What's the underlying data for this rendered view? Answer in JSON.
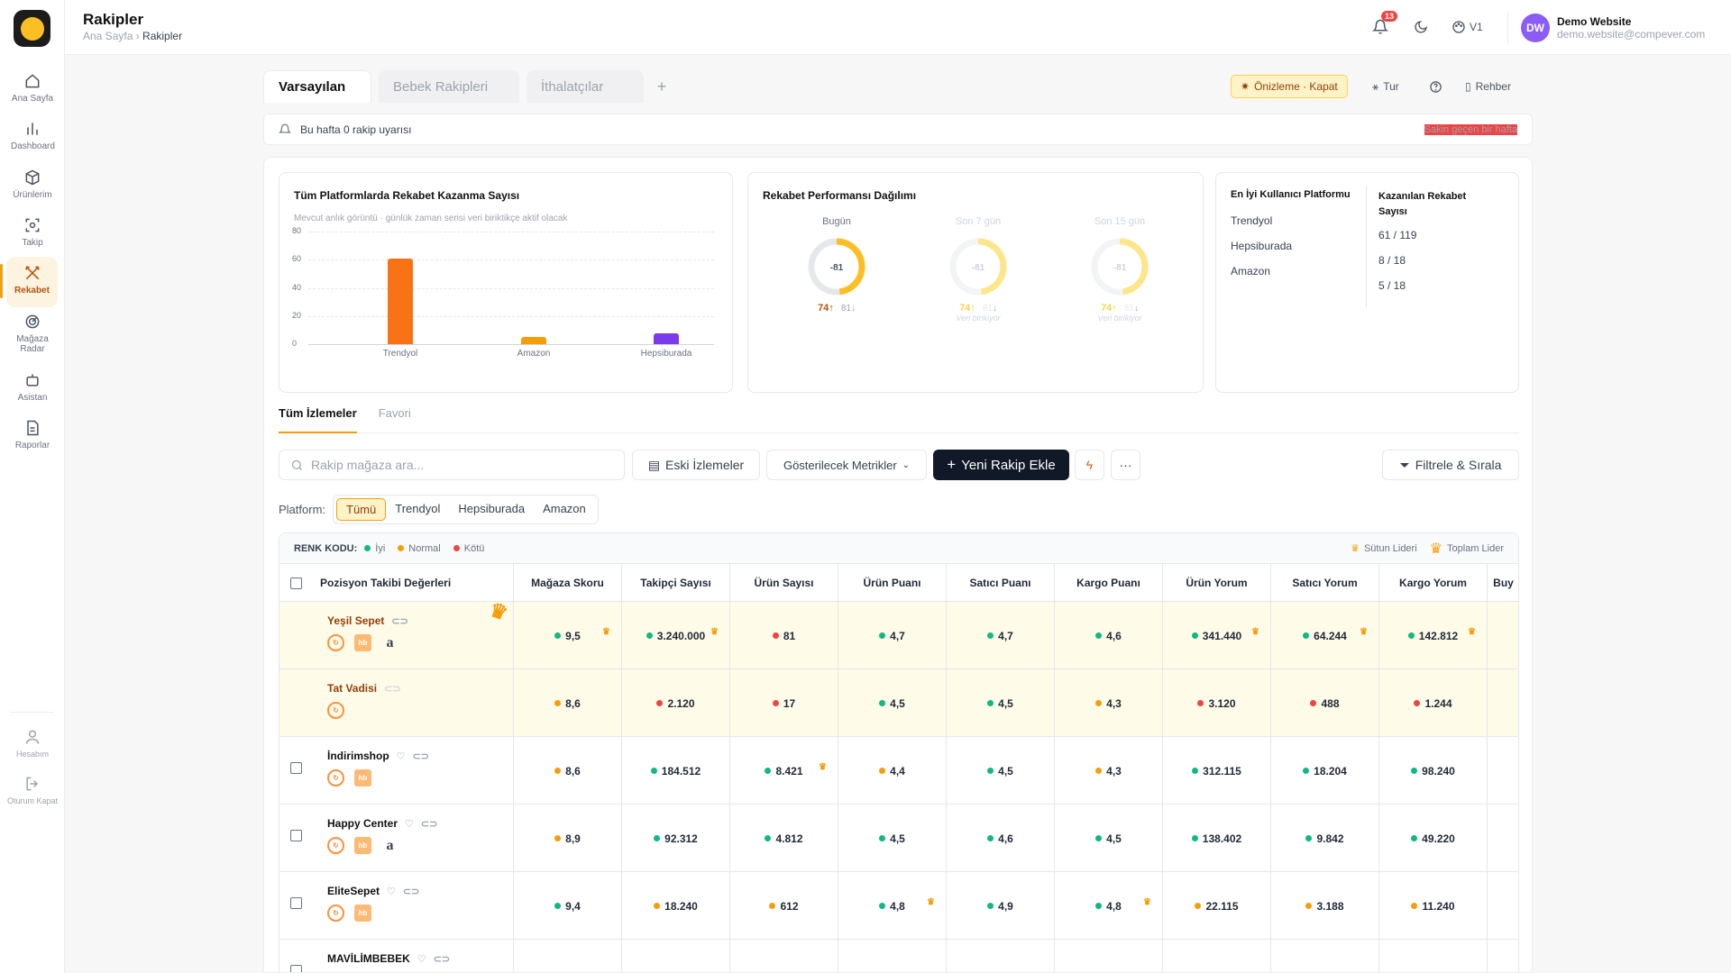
{
  "sidebar": {
    "items": [
      {
        "label": "Ana Sayfa",
        "icon": "home-icon"
      },
      {
        "label": "Dashboard",
        "icon": "chart-icon"
      },
      {
        "label": "Ürünlerim",
        "icon": "box-icon"
      },
      {
        "label": "Takip",
        "icon": "scan-icon"
      },
      {
        "label": "Rekabet",
        "icon": "swords-icon"
      },
      {
        "label": "Mağaza Radar",
        "icon": "radar-icon"
      },
      {
        "label": "Asistan",
        "icon": "bot-icon"
      },
      {
        "label": "Raporlar",
        "icon": "file-icon"
      }
    ],
    "bottom": [
      {
        "label": "Hesabım",
        "icon": "user-icon"
      },
      {
        "label": "Oturum Kapat",
        "icon": "logout-icon"
      }
    ]
  },
  "header": {
    "title": "Rakipler",
    "crumb_home": "Ana Sayfa",
    "crumb_current": "Rakipler",
    "notif_count": "13",
    "version": "V1",
    "user_initials": "DW",
    "user_name": "Demo Website",
    "user_email": "demo.website@compever.com"
  },
  "tabs": [
    "Varsayılan",
    "Bebek Rakipleri",
    "İthalatçılar"
  ],
  "toolbar": {
    "preview": "Önizleme · Kapat",
    "tour": "Tur",
    "guide": "Rehber"
  },
  "alert": {
    "text": "Bu hafta 0 rakip uyarısı",
    "right": "Sakin geçen bir hafta"
  },
  "chart_data": [
    {
      "type": "bar",
      "title": "Tüm Platformlarda Rekabet Kazanma Sayısı",
      "subtitle": "Mevcut anlık görüntü · günlük zaman serisi veri biriktikçe aktif olacak",
      "categories": [
        "Trendyol",
        "Amazon",
        "Hepsiburada"
      ],
      "values": [
        61,
        5,
        8
      ],
      "colors": [
        "#f97316",
        "#f59e0b",
        "#7c3aed"
      ],
      "ylim": [
        0,
        80
      ],
      "yticks": [
        "0",
        "20",
        "40",
        "60",
        "80"
      ],
      "ytick_labels": [
        "0",
        "20",
        "40",
        "60",
        "80"
      ]
    },
    {
      "type": "pie",
      "title": "Rekabet Performansı Dağılımı",
      "donuts": [
        {
          "label": "Bugün",
          "center": "-81",
          "up": "74",
          "down": "81",
          "note": "",
          "fraction": 0.48,
          "faded": false
        },
        {
          "label": "Son 7 gün",
          "center": "-81",
          "up": "74",
          "down": "81",
          "note": "Veri birikiyor",
          "fraction": 0.48,
          "faded": true
        },
        {
          "label": "Son 15 gün",
          "center": "-81",
          "up": "74",
          "down": "81",
          "note": "Veri birikiyor",
          "fraction": 0.48,
          "faded": true
        }
      ]
    },
    {
      "type": "table",
      "headers": [
        "En İyi Kullanıcı Platformu",
        "Kazanılan Rekabet Sayısı"
      ],
      "rows": [
        [
          "Trendyol",
          "61 / 119"
        ],
        [
          "Hepsiburada",
          "8 / 18"
        ],
        [
          "Amazon",
          "5 / 18"
        ]
      ]
    }
  ],
  "subtabs": [
    "Tüm İzlemeler",
    "Favori"
  ],
  "search": {
    "placeholder": "Rakip mağaza ara..."
  },
  "buttons": {
    "old": "Eski İzlemeler",
    "metrics": "Gösterilecek Metrikler",
    "add": "Yeni Rakip Ekle",
    "filter": "Filtrele & Sırala"
  },
  "platform": {
    "label": "Platform:",
    "options": [
      "Tümü",
      "Trendyol",
      "Hepsiburada",
      "Amazon"
    ]
  },
  "legend": {
    "title": "RENK KODU:",
    "good": "İyi",
    "normal": "Normal",
    "bad": "Kötü",
    "col_leader": "Sütun Lideri",
    "total_leader": "Toplam Lider"
  },
  "table": {
    "headers": [
      "Pozisyon Takibi Değerleri",
      "Mağaza Skoru",
      "Takipçi Sayısı",
      "Ürün Sayısı",
      "Ürün Puanı",
      "Satıcı Puanı",
      "Kargo Puanı",
      "Ürün Yorum",
      "Satıcı Yorum",
      "Kargo Yorum",
      "Buy"
    ],
    "rows": [
      {
        "name": "Yeşil Sepet",
        "plats": [
          "ty",
          "hb",
          "az"
        ],
        "hl": true,
        "cells": [
          [
            "9,5",
            "g",
            true
          ],
          [
            "3.240.000",
            "g",
            true
          ],
          [
            "81",
            "r",
            false
          ],
          [
            "4,7",
            "g",
            false
          ],
          [
            "4,7",
            "g",
            false
          ],
          [
            "4,6",
            "g",
            false
          ],
          [
            "341.440",
            "g",
            true
          ],
          [
            "64.244",
            "g",
            true
          ],
          [
            "142.812",
            "g",
            true
          ]
        ]
      },
      {
        "name": "Tat Vadisi",
        "plats": [
          "ty"
        ],
        "hl": true,
        "cells": [
          [
            "8,6",
            "o",
            false
          ],
          [
            "2.120",
            "r",
            false
          ],
          [
            "17",
            "r",
            false
          ],
          [
            "4,5",
            "g",
            false
          ],
          [
            "4,5",
            "g",
            false
          ],
          [
            "4,3",
            "o",
            false
          ],
          [
            "3.120",
            "r",
            false
          ],
          [
            "488",
            "r",
            false
          ],
          [
            "1.244",
            "r",
            false
          ]
        ]
      },
      {
        "name": "İndirimshop",
        "plats": [
          "ty",
          "hb"
        ],
        "hl": false,
        "cells": [
          [
            "8,6",
            "o",
            false
          ],
          [
            "184.512",
            "g",
            false
          ],
          [
            "8.421",
            "g",
            true
          ],
          [
            "4,4",
            "o",
            false
          ],
          [
            "4,5",
            "g",
            false
          ],
          [
            "4,3",
            "o",
            false
          ],
          [
            "312.115",
            "g",
            false
          ],
          [
            "18.204",
            "g",
            false
          ],
          [
            "98.240",
            "g",
            false
          ]
        ]
      },
      {
        "name": "Happy Center",
        "plats": [
          "ty",
          "hb",
          "az"
        ],
        "hl": false,
        "cells": [
          [
            "8,9",
            "o",
            false
          ],
          [
            "92.312",
            "g",
            false
          ],
          [
            "4.812",
            "g",
            false
          ],
          [
            "4,5",
            "g",
            false
          ],
          [
            "4,6",
            "g",
            false
          ],
          [
            "4,5",
            "g",
            false
          ],
          [
            "138.402",
            "g",
            false
          ],
          [
            "9.842",
            "g",
            false
          ],
          [
            "49.220",
            "g",
            false
          ]
        ]
      },
      {
        "name": "EliteSepet",
        "plats": [
          "ty",
          "hb"
        ],
        "hl": false,
        "cells": [
          [
            "9,4",
            "g",
            false
          ],
          [
            "18.240",
            "o",
            false
          ],
          [
            "612",
            "o",
            false
          ],
          [
            "4,8",
            "g",
            true
          ],
          [
            "4,9",
            "g",
            false
          ],
          [
            "4,8",
            "g",
            true
          ],
          [
            "22.115",
            "o",
            false
          ],
          [
            "3.188",
            "o",
            false
          ],
          [
            "11.240",
            "o",
            false
          ]
        ]
      },
      {
        "name": "MAVİLİMBEBEK",
        "plats": [],
        "hl": false,
        "cells": []
      }
    ]
  }
}
